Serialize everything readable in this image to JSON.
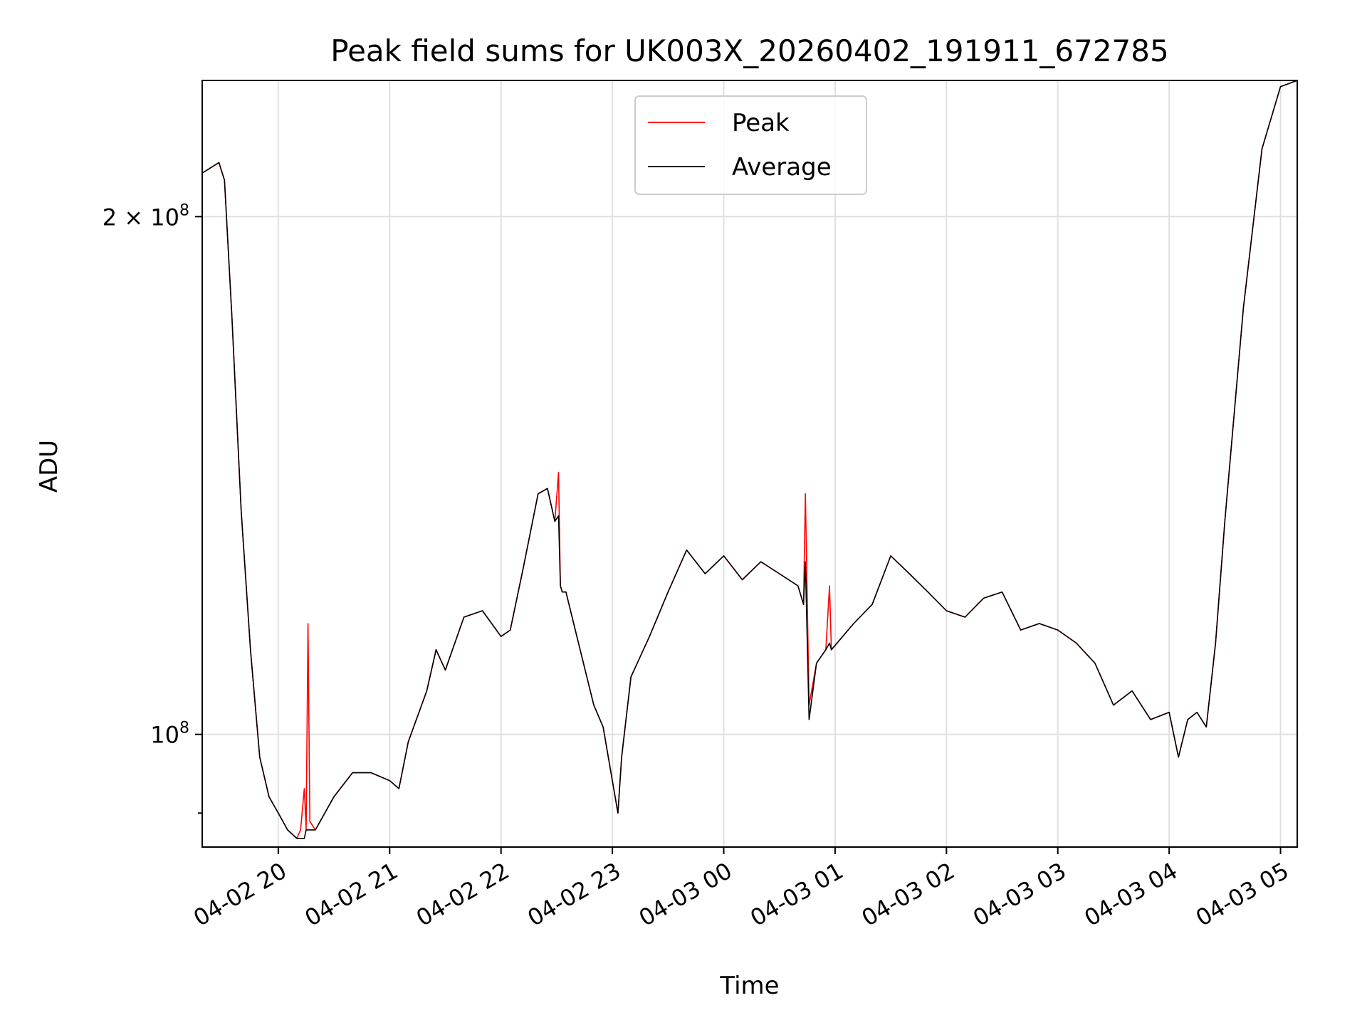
{
  "chart_data": {
    "type": "line",
    "title": "Peak field sums for UK003X_20260402_191911_672785",
    "xlabel": "Time",
    "ylabel": "ADU",
    "y_scale": "log",
    "xlim": [
      "2026-04-02 19:19",
      "2026-04-03 05:09"
    ],
    "ylim": [
      86000000,
      240000000
    ],
    "grid": true,
    "legend_position": "top-center",
    "x_ticks": [
      {
        "t": "2026-04-02 20:00",
        "label": "04-02 20"
      },
      {
        "t": "2026-04-02 21:00",
        "label": "04-02 21"
      },
      {
        "t": "2026-04-02 22:00",
        "label": "04-02 22"
      },
      {
        "t": "2026-04-02 23:00",
        "label": "04-02 23"
      },
      {
        "t": "2026-04-03 00:00",
        "label": "04-03 00"
      },
      {
        "t": "2026-04-03 01:00",
        "label": "04-03 01"
      },
      {
        "t": "2026-04-03 02:00",
        "label": "04-03 02"
      },
      {
        "t": "2026-04-03 03:00",
        "label": "04-03 03"
      },
      {
        "t": "2026-04-03 04:00",
        "label": "04-03 04"
      },
      {
        "t": "2026-04-03 05:00",
        "label": "04-03 05"
      }
    ],
    "y_ticks": [
      {
        "value": 100000000,
        "base": "10",
        "exp": "8"
      },
      {
        "value": 200000000,
        "base": "2 × 10",
        "exp": "8"
      }
    ],
    "y_minor_ticks": [
      90000000
    ],
    "series": [
      {
        "name": "Peak",
        "color": "#ff0000",
        "x": [
          "2026-04-02 19:19",
          "2026-04-02 19:25",
          "2026-04-02 19:28",
          "2026-04-02 19:31",
          "2026-04-02 19:35",
          "2026-04-02 19:40",
          "2026-04-02 19:45",
          "2026-04-02 19:50",
          "2026-04-02 19:55",
          "2026-04-02 20:00",
          "2026-04-02 20:05",
          "2026-04-02 20:10",
          "2026-04-02 20:12",
          "2026-04-02 20:14",
          "2026-04-02 20:15",
          "2026-04-02 20:16",
          "2026-04-02 20:17",
          "2026-04-02 20:20",
          "2026-04-02 20:30",
          "2026-04-02 20:40",
          "2026-04-02 20:50",
          "2026-04-02 21:00",
          "2026-04-02 21:05",
          "2026-04-02 21:10",
          "2026-04-02 21:20",
          "2026-04-02 21:25",
          "2026-04-02 21:30",
          "2026-04-02 21:40",
          "2026-04-02 21:50",
          "2026-04-02 22:00",
          "2026-04-02 22:05",
          "2026-04-02 22:12",
          "2026-04-02 22:20",
          "2026-04-02 22:25",
          "2026-04-02 22:29",
          "2026-04-02 22:31",
          "2026-04-02 22:32",
          "2026-04-02 22:33",
          "2026-04-02 22:35",
          "2026-04-02 22:40",
          "2026-04-02 22:50",
          "2026-04-02 22:55",
          "2026-04-02 23:03",
          "2026-04-02 23:05",
          "2026-04-02 23:10",
          "2026-04-02 23:20",
          "2026-04-02 23:30",
          "2026-04-02 23:40",
          "2026-04-02 23:50",
          "2026-04-03 00:00",
          "2026-04-03 00:10",
          "2026-04-03 00:20",
          "2026-04-03 00:30",
          "2026-04-03 00:40",
          "2026-04-03 00:43",
          "2026-04-03 00:44",
          "2026-04-03 00:46",
          "2026-04-03 00:50",
          "2026-04-03 00:55",
          "2026-04-03 00:57",
          "2026-04-03 00:58",
          "2026-04-03 01:10",
          "2026-04-03 01:20",
          "2026-04-03 01:30",
          "2026-04-03 01:40",
          "2026-04-03 01:50",
          "2026-04-03 02:00",
          "2026-04-03 02:10",
          "2026-04-03 02:20",
          "2026-04-03 02:30",
          "2026-04-03 02:40",
          "2026-04-03 02:50",
          "2026-04-03 03:00",
          "2026-04-03 03:10",
          "2026-04-03 03:20",
          "2026-04-03 03:30",
          "2026-04-03 03:40",
          "2026-04-03 03:50",
          "2026-04-03 04:00",
          "2026-04-03 04:05",
          "2026-04-03 04:10",
          "2026-04-03 04:15",
          "2026-04-03 04:20",
          "2026-04-03 04:25",
          "2026-04-03 04:30",
          "2026-04-03 04:40",
          "2026-04-03 04:50",
          "2026-04-03 05:00",
          "2026-04-03 05:09"
        ],
        "values": [
          212000000,
          214000000,
          215000000,
          210000000,
          175000000,
          135000000,
          112000000,
          97000000,
          92000000,
          90000000,
          88000000,
          87000000,
          88000000,
          93000000,
          88000000,
          116000000,
          89000000,
          88000000,
          92000000,
          95000000,
          95000000,
          94000000,
          93000000,
          99000000,
          106000000,
          112000000,
          109000000,
          117000000,
          118000000,
          114000000,
          115000000,
          125000000,
          138000000,
          139000000,
          133000000,
          142000000,
          122000000,
          121000000,
          121000000,
          115000000,
          104000000,
          101000000,
          90000000,
          97000000,
          108000000,
          114000000,
          121000000,
          128000000,
          124000000,
          127000000,
          123000000,
          126000000,
          124000000,
          122000000,
          119000000,
          138000000,
          104000000,
          110000000,
          112000000,
          122000000,
          112000000,
          116000000,
          119000000,
          127000000,
          124000000,
          121000000,
          118000000,
          117000000,
          120000000,
          121000000,
          115000000,
          116000000,
          115000000,
          113000000,
          110000000,
          104000000,
          106000000,
          102000000,
          103000000,
          97000000,
          102000000,
          103000000,
          101000000,
          113000000,
          133000000,
          177000000,
          219000000,
          238000000,
          240000000
        ]
      },
      {
        "name": "Average",
        "color": "#000000",
        "x": [
          "2026-04-02 19:19",
          "2026-04-02 19:25",
          "2026-04-02 19:28",
          "2026-04-02 19:31",
          "2026-04-02 19:35",
          "2026-04-02 19:40",
          "2026-04-02 19:45",
          "2026-04-02 19:50",
          "2026-04-02 19:55",
          "2026-04-02 20:00",
          "2026-04-02 20:05",
          "2026-04-02 20:10",
          "2026-04-02 20:12",
          "2026-04-02 20:14",
          "2026-04-02 20:15",
          "2026-04-02 20:16",
          "2026-04-02 20:17",
          "2026-04-02 20:20",
          "2026-04-02 20:30",
          "2026-04-02 20:40",
          "2026-04-02 20:50",
          "2026-04-02 21:00",
          "2026-04-02 21:05",
          "2026-04-02 21:10",
          "2026-04-02 21:20",
          "2026-04-02 21:25",
          "2026-04-02 21:30",
          "2026-04-02 21:40",
          "2026-04-02 21:50",
          "2026-04-02 22:00",
          "2026-04-02 22:05",
          "2026-04-02 22:12",
          "2026-04-02 22:20",
          "2026-04-02 22:25",
          "2026-04-02 22:29",
          "2026-04-02 22:31",
          "2026-04-02 22:32",
          "2026-04-02 22:33",
          "2026-04-02 22:35",
          "2026-04-02 22:40",
          "2026-04-02 22:50",
          "2026-04-02 22:55",
          "2026-04-02 23:03",
          "2026-04-02 23:05",
          "2026-04-02 23:10",
          "2026-04-02 23:20",
          "2026-04-02 23:30",
          "2026-04-02 23:40",
          "2026-04-02 23:50",
          "2026-04-03 00:00",
          "2026-04-03 00:10",
          "2026-04-03 00:20",
          "2026-04-03 00:30",
          "2026-04-03 00:40",
          "2026-04-03 00:43",
          "2026-04-03 00:44",
          "2026-04-03 00:46",
          "2026-04-03 00:50",
          "2026-04-03 00:55",
          "2026-04-03 00:57",
          "2026-04-03 00:58",
          "2026-04-03 01:10",
          "2026-04-03 01:20",
          "2026-04-03 01:30",
          "2026-04-03 01:40",
          "2026-04-03 01:50",
          "2026-04-03 02:00",
          "2026-04-03 02:10",
          "2026-04-03 02:20",
          "2026-04-03 02:30",
          "2026-04-03 02:40",
          "2026-04-03 02:50",
          "2026-04-03 03:00",
          "2026-04-03 03:10",
          "2026-04-03 03:20",
          "2026-04-03 03:30",
          "2026-04-03 03:40",
          "2026-04-03 03:50",
          "2026-04-03 04:00",
          "2026-04-03 04:05",
          "2026-04-03 04:10",
          "2026-04-03 04:15",
          "2026-04-03 04:20",
          "2026-04-03 04:25",
          "2026-04-03 04:30",
          "2026-04-03 04:40",
          "2026-04-03 04:50",
          "2026-04-03 05:00",
          "2026-04-03 05:09"
        ],
        "values": [
          212000000,
          214000000,
          215000000,
          210000000,
          175000000,
          135000000,
          112000000,
          97000000,
          92000000,
          90000000,
          88000000,
          87000000,
          87000000,
          87000000,
          88000000,
          88000000,
          88000000,
          88000000,
          92000000,
          95000000,
          95000000,
          94000000,
          93000000,
          99000000,
          106000000,
          112000000,
          109000000,
          117000000,
          118000000,
          114000000,
          115000000,
          125000000,
          138000000,
          139000000,
          133000000,
          134000000,
          122000000,
          121000000,
          121000000,
          115000000,
          104000000,
          101000000,
          90000000,
          97000000,
          108000000,
          114000000,
          121000000,
          128000000,
          124000000,
          127000000,
          123000000,
          126000000,
          124000000,
          122000000,
          119000000,
          126000000,
          102000000,
          110000000,
          112000000,
          113000000,
          112000000,
          116000000,
          119000000,
          127000000,
          124000000,
          121000000,
          118000000,
          117000000,
          120000000,
          121000000,
          115000000,
          116000000,
          115000000,
          113000000,
          110000000,
          104000000,
          106000000,
          102000000,
          103000000,
          97000000,
          102000000,
          103000000,
          101000000,
          113000000,
          133000000,
          177000000,
          219000000,
          238000000,
          240000000
        ]
      }
    ]
  }
}
